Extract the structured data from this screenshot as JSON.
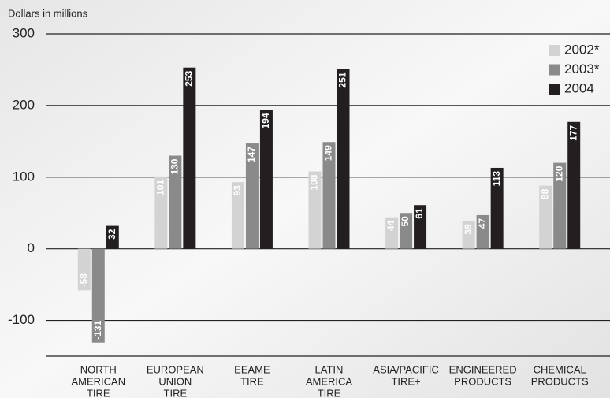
{
  "chart_data": {
    "type": "bar",
    "title": "Dollars in millions",
    "categories": [
      [
        "NORTH",
        "AMERICAN",
        "TIRE"
      ],
      [
        "EUROPEAN",
        "UNION",
        "TIRE"
      ],
      [
        "EEAME",
        "TIRE"
      ],
      [
        "LATIN",
        "AMERICA",
        "TIRE"
      ],
      [
        "ASIA/PACIFIC",
        "TIRE+"
      ],
      [
        "ENGINEERED",
        "PRODUCTS"
      ],
      [
        "CHEMICAL",
        "PRODUCTS"
      ]
    ],
    "series": [
      {
        "name": "2002*",
        "color": "#d3d3d3",
        "values": [
          -58,
          101,
          93,
          108,
          44,
          39,
          88
        ]
      },
      {
        "name": "2003*",
        "color": "#8a8a8a",
        "values": [
          -131,
          130,
          147,
          149,
          50,
          47,
          120
        ]
      },
      {
        "name": "2004",
        "color": "#231f20",
        "values": [
          32,
          253,
          194,
          251,
          61,
          113,
          177
        ]
      }
    ],
    "ylim": [
      -150,
      300
    ],
    "yticks": [
      -100,
      0,
      100,
      200,
      300
    ],
    "grid": true,
    "legend": "top-right"
  }
}
